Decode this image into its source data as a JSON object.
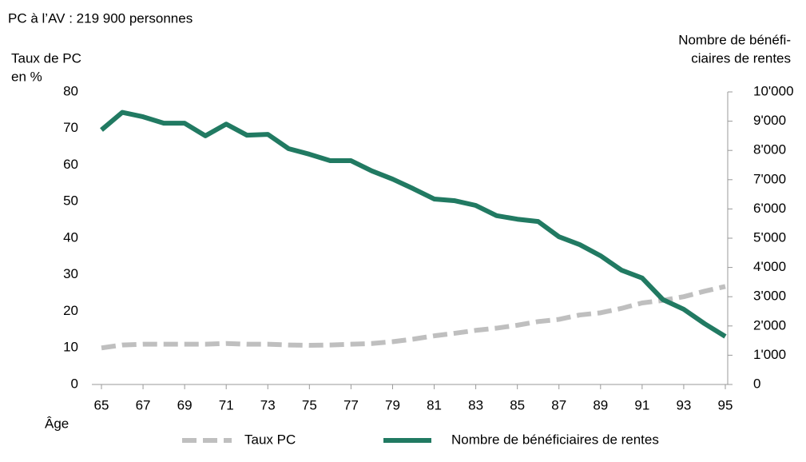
{
  "chart_data": {
    "type": "line",
    "title": "PC à l’AV : 219 900 personnes",
    "ylabel": [
      "Taux de PC",
      "en %"
    ],
    "y2label": [
      "Nombre de bénéfi-",
      "ciaires de rentes"
    ],
    "xlabel": "Âge",
    "x": [
      65,
      66,
      67,
      68,
      69,
      70,
      71,
      72,
      73,
      74,
      75,
      76,
      77,
      78,
      79,
      80,
      81,
      82,
      83,
      84,
      85,
      86,
      87,
      88,
      89,
      90,
      91,
      92,
      93,
      94,
      95
    ],
    "xlim": [
      65,
      95
    ],
    "xticks": [
      65,
      67,
      69,
      71,
      73,
      75,
      77,
      79,
      81,
      83,
      85,
      87,
      89,
      91,
      93,
      95
    ],
    "ylim": [
      0,
      80
    ],
    "yticks": [
      0,
      10,
      20,
      30,
      40,
      50,
      60,
      70,
      80
    ],
    "y2lim": [
      0,
      10000
    ],
    "y2ticks": [
      {
        "value": 0,
        "label": "0"
      },
      {
        "value": 1000,
        "label": "1'000"
      },
      {
        "value": 2000,
        "label": "2'000"
      },
      {
        "value": 3000,
        "label": "3'000"
      },
      {
        "value": 4000,
        "label": "4'000"
      },
      {
        "value": 5000,
        "label": "5'000"
      },
      {
        "value": 6000,
        "label": "6'000"
      },
      {
        "value": 7000,
        "label": "7'000"
      },
      {
        "value": 8000,
        "label": "8'000"
      },
      {
        "value": 9000,
        "label": "9'000"
      },
      {
        "value": 10000,
        "label": "10'000"
      }
    ],
    "series": [
      {
        "name": "Taux PC",
        "color": "#bfbfbf",
        "dashed": true,
        "axis": "y",
        "values": [
          10,
          10.8,
          11,
          11,
          11,
          11,
          11.2,
          11,
          11,
          10.8,
          10.7,
          10.8,
          11,
          11.2,
          11.7,
          12.4,
          13.3,
          14,
          14.8,
          15.4,
          16.2,
          17.2,
          17.8,
          19,
          19.6,
          20.8,
          22.3,
          23,
          24,
          25.5,
          26.8
        ]
      },
      {
        "name": "Nombre de bénéficiaires de rentes",
        "color": "#217a62",
        "dashed": false,
        "axis": "y2",
        "values": [
          8700,
          9300,
          9150,
          8930,
          8930,
          8500,
          8900,
          8520,
          8550,
          8060,
          7870,
          7650,
          7650,
          7300,
          7020,
          6690,
          6340,
          6280,
          6120,
          5770,
          5650,
          5570,
          5050,
          4780,
          4400,
          3910,
          3640,
          2900,
          2570,
          2080,
          1640
        ]
      }
    ]
  }
}
